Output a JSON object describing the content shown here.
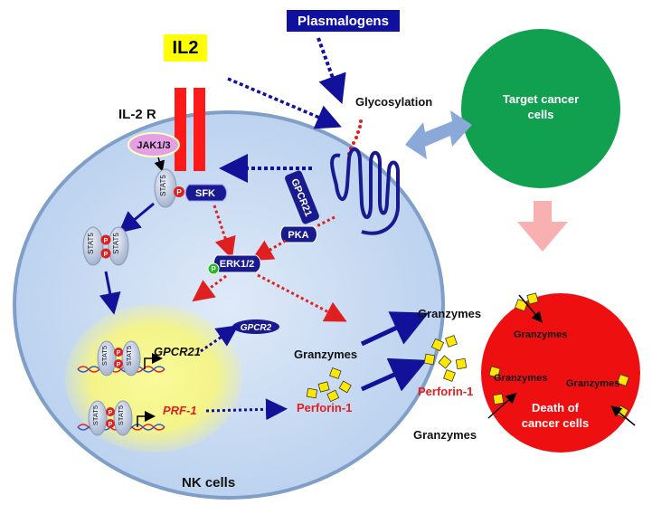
{
  "labels": {
    "il2": "IL2",
    "plasmalogens": "Plasmalogens",
    "il2r": "IL-2 R",
    "glycosylation": "Glycosylation",
    "target_cancer_cells": [
      "Target cancer",
      "cells"
    ],
    "jak": "JAK1/3",
    "stat5": "STAT5",
    "p": "P",
    "sfk": "SFK",
    "gpcr21_receptor": "GPCR21",
    "pka": "PKA",
    "erk": "ERK1/2",
    "gpcr2": "GPCR2",
    "gpcr21_gene": "GPCR21",
    "prf1_gene": "PRF-1",
    "granzymes": "Granzymes",
    "perforin1": "Perforin-1",
    "death_of_cancer_cells": [
      "Death of",
      "cancer cells"
    ],
    "nk_cells": "NK cells"
  },
  "colors": {
    "cell_fill": "#c7dcf3",
    "cell_stroke": "#7f9fc8",
    "nucleus_glow": "#f6f68c",
    "receptor_red": "#ff1a1a",
    "navy": "#111199",
    "dotted_red": "#e02020",
    "target_green": "#10a050",
    "cancer_red": "#ee1010",
    "granule_yellow": "#ffe800",
    "pink_arrow": "#f9b0b0",
    "bidir_arrow": "#8aa8d8"
  }
}
